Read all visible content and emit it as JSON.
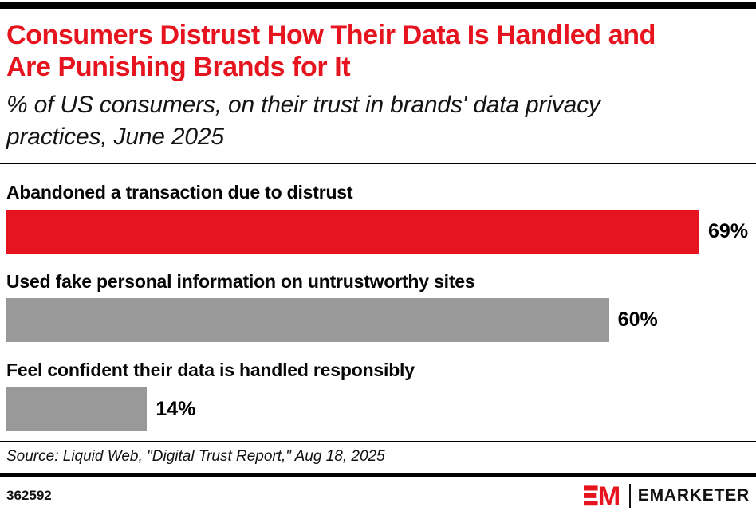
{
  "colors": {
    "accent_red": "#E6141E",
    "bar_gray": "#999999",
    "rule_black": "#000000"
  },
  "chart_data": {
    "type": "bar",
    "orientation": "horizontal",
    "title": "Consumers Distrust How Their Data Is Handled and Are Punishing Brands for It",
    "subtitle": "% of US consumers, on their trust in brands' data privacy practices, June 2025",
    "categories": [
      "Abandoned a transaction due to distrust",
      "Used fake personal information on untrustworthy sites",
      "Feel confident their data is handled responsibly"
    ],
    "values": [
      69,
      60,
      14
    ],
    "value_labels": [
      "69%",
      "60%",
      "14%"
    ],
    "bar_colors": [
      "#E6141E",
      "#999999",
      "#999999"
    ],
    "unit": "%",
    "xlim": [
      0,
      74
    ],
    "grid": false,
    "value_label_position": "right-of-bar",
    "source": "Source: Liquid Web, \"Digital Trust Report,\" Aug 18, 2025"
  },
  "footer": {
    "chart_id": "362592",
    "brand": "EMARKETER",
    "logo_icon": "em-monogram-icon"
  }
}
